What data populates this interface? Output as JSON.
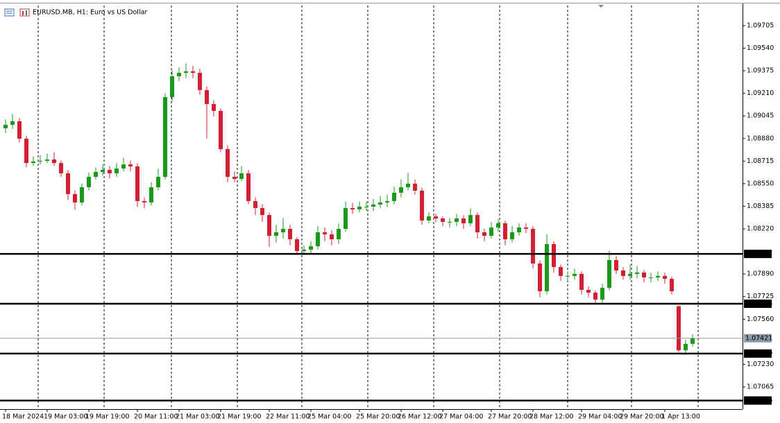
{
  "chart_data": {
    "type": "candlestick",
    "title": "EURUSD.MB, H1:  Euro vs US Dollar",
    "bull_color": "#1a9a1a",
    "bear_color": "#d1202f",
    "categories": [
      "18 Mar 2024",
      null,
      null,
      null,
      null,
      null,
      "19 Mar 03:00",
      null,
      null,
      null,
      null,
      null,
      "19 Mar 19:00",
      null,
      null,
      null,
      null,
      null,
      null,
      "20 Mar 11:00",
      null,
      null,
      null,
      null,
      null,
      "21 Mar 03:00",
      null,
      null,
      null,
      null,
      null,
      "21 Mar 19:00",
      null,
      null,
      null,
      null,
      null,
      null,
      "22 Mar 11:00",
      null,
      null,
      null,
      null,
      null,
      "25 Mar 04:00",
      null,
      null,
      null,
      null,
      null,
      null,
      "25 Mar 20:00",
      null,
      null,
      null,
      null,
      null,
      "26 Mar 12:00",
      null,
      null,
      null,
      null,
      null,
      "27 Mar 04:00",
      null,
      null,
      null,
      null,
      null,
      null,
      "27 Mar 20:00",
      null,
      null,
      null,
      null,
      null,
      "28 Mar 12:00",
      null,
      null,
      null,
      null,
      null,
      null,
      "29 Mar 04:00",
      null,
      null,
      null,
      null,
      null,
      "29 Mar 20:00",
      null,
      null,
      null,
      null,
      null,
      "1 Apr 13:00",
      null,
      null,
      null,
      null
    ],
    "open": [
      1.08955,
      1.0898,
      1.09006,
      1.08879,
      1.08701,
      1.08712,
      1.08717,
      1.08727,
      1.08701,
      1.08626,
      1.08474,
      1.08413,
      1.08524,
      1.086,
      1.08636,
      1.08651,
      1.08626,
      1.08661,
      1.08691,
      1.08676,
      1.08423,
      1.08413,
      1.08524,
      1.086,
      1.09183,
      1.09335,
      1.0936,
      1.09371,
      1.0936,
      1.09234,
      1.09132,
      1.09082,
      1.08803,
      1.086,
      1.08585,
      1.08626,
      1.08423,
      1.08372,
      1.08321,
      1.08169,
      1.08195,
      1.0822,
      1.08144,
      1.08058,
      1.08068,
      1.08093,
      1.08195,
      1.0818,
      1.08144,
      1.0822,
      1.08372,
      1.08362,
      1.08382,
      1.08382,
      1.08398,
      1.08413,
      1.08423,
      1.08484,
      1.08524,
      1.0855,
      1.08499,
      1.08281,
      1.08311,
      1.08296,
      1.08271,
      1.08271,
      1.08296,
      1.08261,
      1.08321,
      1.08195,
      1.08169,
      1.0823,
      1.08261,
      1.08144,
      1.08195,
      1.0823,
      1.0822,
      1.07967,
      1.07764,
      1.08109,
      1.07941,
      1.07876,
      1.07876,
      1.07891,
      1.07774,
      1.07754,
      1.07703,
      1.07789,
      1.07992,
      1.07916,
      1.07876,
      1.07891,
      1.07901,
      1.07865,
      1.07865,
      1.07876,
      1.07855,
      1.07655,
      1.07333,
      1.0738
    ],
    "high": [
      1.0902,
      1.0906,
      1.0903,
      1.089,
      1.0875,
      1.0876,
      1.0877,
      1.0878,
      1.0872,
      1.0865,
      1.085,
      1.0855,
      1.0863,
      1.0867,
      1.0869,
      1.0868,
      1.087,
      1.0874,
      1.0872,
      1.087,
      1.0845,
      1.0856,
      1.0866,
      1.0921,
      1.0938,
      1.094,
      1.0943,
      1.0941,
      1.0939,
      1.0926,
      1.0916,
      1.091,
      1.0883,
      1.0864,
      1.0868,
      1.0865,
      1.0845,
      1.084,
      1.0834,
      1.0825,
      1.083,
      1.0825,
      1.0816,
      1.081,
      1.0813,
      1.0824,
      1.0823,
      1.0821,
      1.0826,
      1.0842,
      1.0841,
      1.0842,
      1.0842,
      1.0844,
      1.0846,
      1.0847,
      1.0853,
      1.0858,
      1.0863,
      1.0858,
      1.0852,
      1.0834,
      1.0833,
      1.0831,
      1.083,
      1.0833,
      1.0832,
      1.0837,
      1.0834,
      1.0822,
      1.0827,
      1.0829,
      1.0828,
      1.0824,
      1.0826,
      1.0826,
      1.0824,
      1.0799,
      1.0818,
      1.0813,
      1.0796,
      1.0791,
      1.0793,
      1.0791,
      1.078,
      1.0777,
      1.0782,
      1.0806,
      1.0802,
      1.0794,
      1.0796,
      1.0795,
      1.0792,
      1.079,
      1.0791,
      1.079,
      1.0787,
      1.0766,
      1.0741,
      1.0745
    ],
    "low": [
      1.0892,
      1.0895,
      1.0885,
      1.0867,
      1.0868,
      1.0869,
      1.087,
      1.0868,
      1.086,
      1.0843,
      1.0836,
      1.0839,
      1.085,
      1.0858,
      1.0861,
      1.0859,
      1.086,
      1.0864,
      1.0864,
      1.0838,
      1.0837,
      1.0839,
      1.085,
      1.0858,
      1.0915,
      1.093,
      1.0932,
      1.0932,
      1.092,
      1.0888,
      1.0904,
      1.0878,
      1.0856,
      1.0856,
      1.0857,
      1.084,
      1.0832,
      1.0827,
      1.0809,
      1.0812,
      1.0815,
      1.081,
      1.0803,
      1.0803,
      1.0804,
      1.0807,
      1.0813,
      1.081,
      1.0811,
      1.082,
      1.0833,
      1.0834,
      1.0835,
      1.0835,
      1.0837,
      1.0838,
      1.084,
      1.0845,
      1.085,
      1.0847,
      1.0825,
      1.0826,
      1.0827,
      1.0824,
      1.0823,
      1.0824,
      1.0822,
      1.0824,
      1.0815,
      1.0813,
      1.0815,
      1.082,
      1.081,
      1.0812,
      1.0817,
      1.0819,
      1.0793,
      1.0772,
      1.0774,
      1.079,
      1.0784,
      1.0784,
      1.0785,
      1.0774,
      1.0772,
      1.0768,
      1.0768,
      1.0777,
      1.0789,
      1.0785,
      1.0785,
      1.0786,
      1.0783,
      1.0783,
      1.0784,
      1.0782,
      1.0774,
      1.0732,
      1.073,
      1.0736
    ],
    "close": [
      1.0898,
      1.09006,
      1.08879,
      1.08701,
      1.08712,
      1.08717,
      1.08727,
      1.08701,
      1.08626,
      1.08474,
      1.08413,
      1.08524,
      1.086,
      1.08636,
      1.08651,
      1.08626,
      1.08661,
      1.08691,
      1.08676,
      1.08423,
      1.08413,
      1.08524,
      1.086,
      1.09183,
      1.09335,
      1.0936,
      1.09371,
      1.0936,
      1.09234,
      1.09132,
      1.09082,
      1.08803,
      1.086,
      1.08585,
      1.08626,
      1.08423,
      1.08372,
      1.08321,
      1.08169,
      1.08195,
      1.0822,
      1.08144,
      1.08058,
      1.08068,
      1.08093,
      1.08195,
      1.0818,
      1.08144,
      1.0822,
      1.08372,
      1.08362,
      1.08382,
      1.08382,
      1.08398,
      1.08413,
      1.08423,
      1.08484,
      1.08524,
      1.0855,
      1.08499,
      1.08281,
      1.08311,
      1.08296,
      1.08271,
      1.08271,
      1.08296,
      1.08261,
      1.08321,
      1.08195,
      1.08169,
      1.0823,
      1.08261,
      1.08144,
      1.08195,
      1.0823,
      1.0822,
      1.07967,
      1.07764,
      1.08109,
      1.07941,
      1.07876,
      1.07876,
      1.07891,
      1.07774,
      1.07754,
      1.07703,
      1.07789,
      1.07992,
      1.07916,
      1.07876,
      1.07891,
      1.07901,
      1.07865,
      1.07865,
      1.07876,
      1.07855,
      1.07764,
      1.07333,
      1.0738,
      1.07421
    ],
    "ylim": [
      1.06903,
      1.09892
    ],
    "yticks": [
      1.09705,
      {
        "value": 1.0954,
        "label": "1.09540"
      },
      1.09375,
      {
        "value": 1.0921,
        "label": "1.09210"
      },
      1.09045,
      {
        "value": 1.0888,
        "label": "1.08880"
      },
      1.08715,
      {
        "value": 1.0855,
        "label": "1.08550"
      },
      1.08385,
      {
        "value": 1.0822,
        "label": "1.08220"
      },
      {
        "value": 1.0789,
        "label": "1.07890"
      },
      1.07725,
      {
        "value": 1.0756,
        "label": "1.07560"
      },
      {
        "value": 1.0723,
        "label": "1.07230"
      },
      1.07065
    ],
    "levels": [
      1.08037,
      1.07673,
      1.07309,
      1.06966
    ],
    "last_price": 1.07421
  }
}
